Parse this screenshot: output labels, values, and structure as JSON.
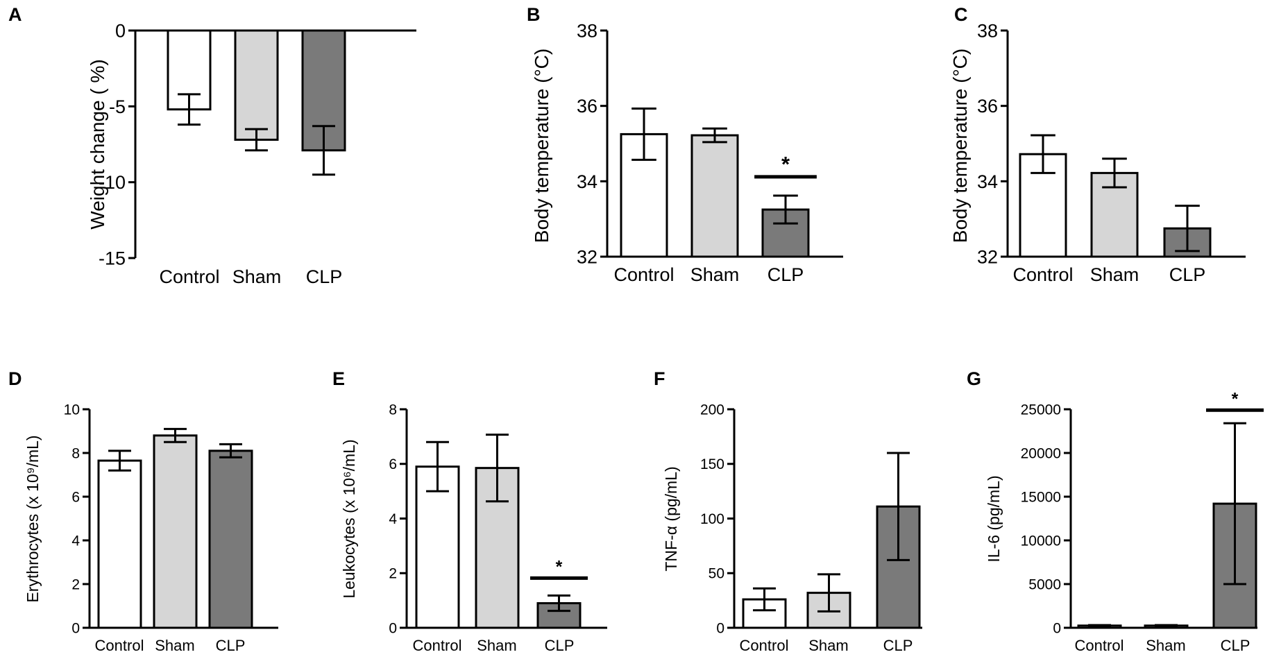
{
  "chart_data": [
    {
      "panel": "A",
      "type": "bar",
      "ylabel": "Weight change ( %)",
      "ylim": [
        -15,
        0
      ],
      "yticks": [
        0,
        -5,
        -10,
        -15
      ],
      "yticklabels": [
        "0",
        "-5",
        "-10",
        "-15"
      ],
      "categories": [
        "Control",
        "Sham",
        "CLP"
      ],
      "values": [
        -5.2,
        -7.2,
        -7.9
      ],
      "errors": [
        1.0,
        0.7,
        1.6
      ],
      "significance": [],
      "colors": [
        "#ffffff",
        "#d6d6d6",
        "#7a7a7a"
      ]
    },
    {
      "panel": "B",
      "type": "bar",
      "ylabel": "Body temperature (°C)",
      "ylim": [
        32,
        38
      ],
      "yticks": [
        32,
        34,
        36,
        38
      ],
      "yticklabels": [
        "32",
        "34",
        "36",
        "38"
      ],
      "categories": [
        "Control",
        "Sham",
        "CLP"
      ],
      "values": [
        35.25,
        35.22,
        33.25
      ],
      "errors": [
        0.68,
        0.18,
        0.37
      ],
      "significance": [
        {
          "index": 2,
          "symbol": "*",
          "at": 34.12
        }
      ],
      "colors": [
        "#ffffff",
        "#d6d6d6",
        "#7a7a7a"
      ]
    },
    {
      "panel": "C",
      "type": "bar",
      "ylabel": "Body temperature (°C)",
      "ylim": [
        32,
        38
      ],
      "yticks": [
        32,
        34,
        36,
        38
      ],
      "yticklabels": [
        "32",
        "34",
        "36",
        "38"
      ],
      "categories": [
        "Control",
        "Sham",
        "CLP"
      ],
      "values": [
        34.72,
        34.22,
        32.75
      ],
      "errors": [
        0.5,
        0.38,
        0.6
      ],
      "significance": [],
      "colors": [
        "#ffffff",
        "#d6d6d6",
        "#7a7a7a"
      ]
    },
    {
      "panel": "D",
      "type": "bar",
      "ylabel": "Erythrocytes (x 10⁹/mL)",
      "ylim": [
        0,
        10
      ],
      "yticks": [
        0,
        2,
        4,
        6,
        8,
        10
      ],
      "yticklabels": [
        "0",
        "2",
        "4",
        "6",
        "8",
        "10"
      ],
      "categories": [
        "Control",
        "Sham",
        "CLP"
      ],
      "values": [
        7.65,
        8.8,
        8.1
      ],
      "errors": [
        0.45,
        0.3,
        0.3
      ],
      "significance": [],
      "colors": [
        "#ffffff",
        "#d6d6d6",
        "#7a7a7a"
      ]
    },
    {
      "panel": "E",
      "type": "bar",
      "ylabel": "Leukocytes (x 10⁶/mL)",
      "ylim": [
        0,
        8
      ],
      "yticks": [
        0,
        2,
        4,
        6,
        8
      ],
      "yticklabels": [
        "0",
        "2",
        "4",
        "6",
        "8"
      ],
      "categories": [
        "Control",
        "Sham",
        "CLP"
      ],
      "values": [
        5.9,
        5.85,
        0.9
      ],
      "errors": [
        0.9,
        1.22,
        0.28
      ],
      "significance": [
        {
          "index": 2,
          "symbol": "*",
          "at": 1.82
        }
      ],
      "colors": [
        "#ffffff",
        "#d6d6d6",
        "#7a7a7a"
      ]
    },
    {
      "panel": "F",
      "type": "bar",
      "ylabel": "TNF-α (pg/mL)",
      "ylim": [
        0,
        200
      ],
      "yticks": [
        0,
        50,
        100,
        150,
        200
      ],
      "yticklabels": [
        "0",
        "50",
        "100",
        "150",
        "200"
      ],
      "categories": [
        "Control",
        "Sham",
        "CLP"
      ],
      "values": [
        26,
        32,
        111
      ],
      "errors": [
        10,
        17,
        49
      ],
      "significance": [],
      "colors": [
        "#ffffff",
        "#d6d6d6",
        "#7a7a7a"
      ]
    },
    {
      "panel": "G",
      "type": "bar",
      "ylabel": "IL-6 (pg/mL)",
      "ylim": [
        0,
        25000
      ],
      "yticks": [
        0,
        5000,
        10000,
        15000,
        20000,
        25000
      ],
      "yticklabels": [
        "0",
        "5000",
        "10000",
        "15000",
        "20000",
        "25000"
      ],
      "categories": [
        "Control",
        "Sham",
        "CLP"
      ],
      "values": [
        250,
        250,
        14200
      ],
      "errors": [
        60,
        60,
        9200
      ],
      "significance": [
        {
          "index": 2,
          "symbol": "*",
          "at": 24900
        }
      ],
      "colors": [
        "#ffffff",
        "#d6d6d6",
        "#7a7a7a"
      ]
    }
  ]
}
